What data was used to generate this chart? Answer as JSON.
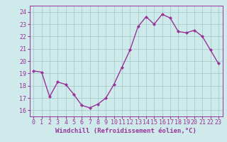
{
  "x": [
    0,
    1,
    2,
    3,
    4,
    5,
    6,
    7,
    8,
    9,
    10,
    11,
    12,
    13,
    14,
    15,
    16,
    17,
    18,
    19,
    20,
    21,
    22,
    23
  ],
  "y": [
    19.2,
    19.1,
    17.1,
    18.3,
    18.1,
    17.3,
    16.4,
    16.2,
    16.5,
    17.0,
    18.1,
    19.5,
    20.9,
    22.8,
    23.6,
    23.0,
    23.8,
    23.5,
    22.4,
    22.3,
    22.5,
    22.0,
    20.9,
    19.8
  ],
  "line_color": "#993399",
  "marker": "D",
  "marker_size": 2.2,
  "line_width": 1.0,
  "bg_color": "#ceeaea",
  "grid_color": "#aacccc",
  "tick_color": "#993399",
  "label_color": "#993399",
  "xlabel": "Windchill (Refroidissement éolien,°C)",
  "xlabel_fontsize": 6.5,
  "ylabel_ticks": [
    16,
    17,
    18,
    19,
    20,
    21,
    22,
    23,
    24
  ],
  "xlim": [
    -0.5,
    23.5
  ],
  "ylim": [
    15.5,
    24.5
  ],
  "xtick_labels": [
    "0",
    "1",
    "2",
    "3",
    "4",
    "5",
    "6",
    "7",
    "8",
    "9",
    "10",
    "11",
    "12",
    "13",
    "14",
    "15",
    "16",
    "17",
    "18",
    "19",
    "20",
    "21",
    "22",
    "23"
  ],
  "tick_fontsize": 6.0
}
